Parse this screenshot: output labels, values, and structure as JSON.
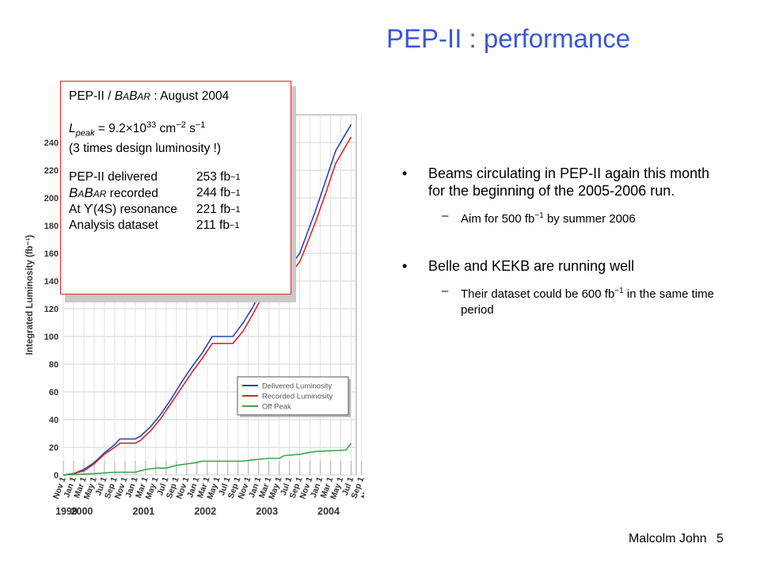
{
  "slide": {
    "title": "PEP-II : performance",
    "footer_author": "Malcolm John",
    "footer_page": "5"
  },
  "box": {
    "line1_pre": "PEP-II / ",
    "babar_b1": "B",
    "babar_a1": "A",
    "babar_b2": "B",
    "babar_ar": "AR",
    "line1_post": " : August 2004",
    "lpeak_L": "L",
    "lpeak_sub": "peak",
    "lpeak_eq": " = 9.2×10",
    "lpeak_exp": "33",
    "lpeak_unit": " cm",
    "lpeak_unit_exp1": "−2",
    "lpeak_unit2": " s",
    "lpeak_unit_exp2": "−1",
    "design_note": "(3 times design luminosity !)",
    "rows": [
      {
        "label": "PEP-II delivered",
        "value": "253 fb",
        "exp": "−1"
      },
      {
        "label": " recorded",
        "value": "244 fb",
        "exp": "−1"
      },
      {
        "label": "At ϒ(4S) resonance",
        "value": "221 fb",
        "exp": "−1"
      },
      {
        "label": "Analysis dataset",
        "value": "211 fb",
        "exp": "−1"
      }
    ]
  },
  "bullets": [
    {
      "marker": "•",
      "text": "Beams circulating in PEP-II again this month for the beginning of the 2005-2006 run.",
      "sub": {
        "marker": "–",
        "text_pre": "Aim for 500 fb",
        "exp": "−1",
        "text_post": " by summer 2006"
      }
    },
    {
      "marker": "•",
      "text": "Belle and KEKB are running well",
      "sub": {
        "marker": "–",
        "text_pre": "Their dataset could be 600 fb",
        "exp": "−1",
        "text_post": " in the same time period"
      }
    }
  ],
  "chart_data": {
    "type": "line",
    "ylabel": "Integrated Luminosity (fb⁻¹)",
    "ylim": [
      0,
      260
    ],
    "yticks": [
      0,
      20,
      40,
      60,
      80,
      100,
      120,
      140,
      160,
      180,
      200,
      220,
      240
    ],
    "xlim": [
      "1999-11",
      "2004-08"
    ],
    "month_ticks": [
      "Nov 1",
      "Jan 1",
      "Mar 1",
      "May 1",
      "Jul 1",
      "Sep 1",
      "Nov 1",
      "Jan 1",
      "Mar 1",
      "May 1",
      "Jul 1",
      "Sep 1",
      "Nov 1",
      "Jan 1",
      "Mar 1",
      "May 1",
      "Jul 1",
      "Sep 1",
      "Nov 1",
      "Jan 1",
      "Mar 1",
      "May 1",
      "Jul 1",
      "Sep 1",
      "Nov 1",
      "Jan 1",
      "Mar 1",
      "May 1",
      "Jul 1",
      "Sep 1",
      "Nov 1",
      "Jan 1",
      "Mar 1",
      "May 1",
      "Jul 1"
    ],
    "year_labels": [
      "1999",
      "2000",
      "2001",
      "2002",
      "2003",
      "2004"
    ],
    "legend_position": "bottom-right",
    "grid": true,
    "series": [
      {
        "name": "Delivered Luminosity",
        "color": "#2a44b4",
        "points": [
          [
            "1999-11",
            0
          ],
          [
            "2000-01",
            1
          ],
          [
            "2000-03",
            4
          ],
          [
            "2000-05",
            9
          ],
          [
            "2000-07",
            16
          ],
          [
            "2000-09",
            22
          ],
          [
            "2000-10",
            26
          ],
          [
            "2001-01",
            26
          ],
          [
            "2001-02",
            28
          ],
          [
            "2001-04",
            35
          ],
          [
            "2001-06",
            44
          ],
          [
            "2001-08",
            55
          ],
          [
            "2001-10",
            67
          ],
          [
            "2001-12",
            78
          ],
          [
            "2002-02",
            88
          ],
          [
            "2002-04",
            100
          ],
          [
            "2002-08",
            100
          ],
          [
            "2002-10",
            110
          ],
          [
            "2002-12",
            122
          ],
          [
            "2003-02",
            137
          ],
          [
            "2003-05",
            137
          ],
          [
            "2003-07",
            150
          ],
          [
            "2003-09",
            160
          ],
          [
            "2003-10",
            170
          ],
          [
            "2003-12",
            190
          ],
          [
            "2004-02",
            212
          ],
          [
            "2004-04",
            234
          ],
          [
            "2004-07",
            253
          ]
        ]
      },
      {
        "name": "Recorded Luminosity",
        "color": "#d9282a",
        "points": [
          [
            "1999-11",
            0
          ],
          [
            "2000-01",
            1
          ],
          [
            "2000-03",
            3
          ],
          [
            "2000-05",
            8
          ],
          [
            "2000-07",
            15
          ],
          [
            "2000-09",
            20
          ],
          [
            "2000-10",
            23
          ],
          [
            "2001-01",
            23
          ],
          [
            "2001-02",
            25
          ],
          [
            "2001-04",
            32
          ],
          [
            "2001-06",
            41
          ],
          [
            "2001-08",
            52
          ],
          [
            "2001-10",
            63
          ],
          [
            "2001-12",
            74
          ],
          [
            "2002-02",
            84
          ],
          [
            "2002-04",
            95
          ],
          [
            "2002-08",
            95
          ],
          [
            "2002-10",
            104
          ],
          [
            "2002-12",
            117
          ],
          [
            "2003-02",
            131
          ],
          [
            "2003-05",
            131
          ],
          [
            "2003-07",
            144
          ],
          [
            "2003-09",
            154
          ],
          [
            "2003-10",
            163
          ],
          [
            "2003-12",
            182
          ],
          [
            "2004-02",
            203
          ],
          [
            "2004-04",
            225
          ],
          [
            "2004-07",
            244
          ]
        ]
      },
      {
        "name": "Off Peak",
        "color": "#3aa64a",
        "points": [
          [
            "1999-11",
            0
          ],
          [
            "2000-05",
            1
          ],
          [
            "2000-09",
            2
          ],
          [
            "2001-01",
            2
          ],
          [
            "2001-03",
            4
          ],
          [
            "2001-05",
            5
          ],
          [
            "2001-07",
            5
          ],
          [
            "2001-09",
            7
          ],
          [
            "2001-11",
            8
          ],
          [
            "2002-01",
            9
          ],
          [
            "2002-02",
            10
          ],
          [
            "2002-10",
            10
          ],
          [
            "2002-12",
            11
          ],
          [
            "2003-03",
            12
          ],
          [
            "2003-05",
            12
          ],
          [
            "2003-06",
            14
          ],
          [
            "2003-09",
            15
          ],
          [
            "2003-12",
            17
          ],
          [
            "2004-06",
            18
          ],
          [
            "2004-07",
            23
          ]
        ]
      }
    ]
  }
}
